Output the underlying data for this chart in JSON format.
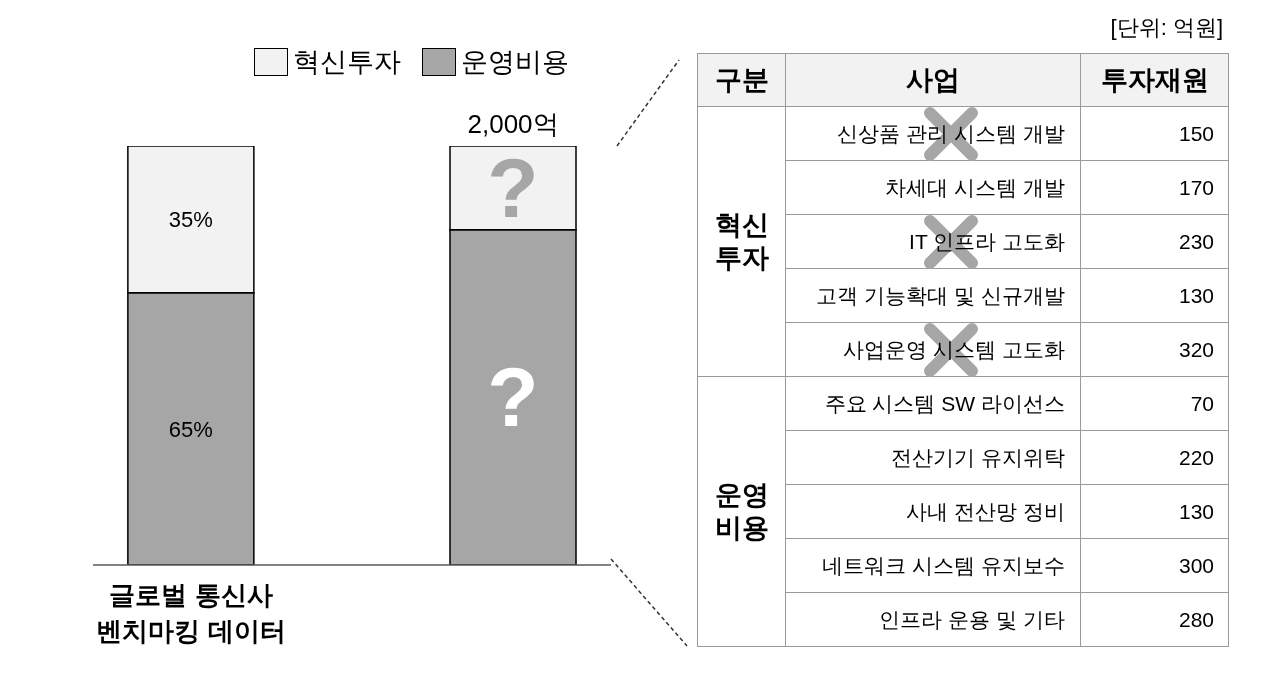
{
  "chart_data": [
    {
      "type": "bar",
      "stacked": true,
      "categories": [
        "글로벌 통신사 벤치마킹 데이터",
        null
      ],
      "series": [
        {
          "name": "운영비용",
          "color": "#a6a6a6",
          "values": [
            65,
            80
          ],
          "value_labels": [
            "65%",
            "?"
          ]
        },
        {
          "name": "혁신투자",
          "color": "#f2f2f2",
          "values": [
            35,
            20
          ],
          "value_labels": [
            "35%",
            "?"
          ]
        }
      ],
      "annotations": [
        "2,000억"
      ],
      "legend": "top"
    },
    {
      "type": "other",
      "annotations": [
        "[단위: 억원]"
      ],
      "legend_title": "구분",
      "xlabel": "사업",
      "ylabel": "투자재원",
      "categories": [
        "신상품 관리 시스템 개발",
        "차세대 시스템 개발",
        "IT 인프라 고도화",
        "고객 기능확대 및 신규개발",
        "사업운영 시스템 고도화",
        "주요 시스템 SW 라이선스",
        "전산기기 유지위탁",
        "사내 전산망 정비",
        "네트워크 시스템 유지보수",
        "인프라 운용 및 기타"
      ],
      "series": [
        {
          "name": "혁신투자",
          "values": [
            150,
            170,
            230,
            130,
            320,
            null,
            null,
            null,
            null,
            null
          ]
        },
        {
          "name": "운영비용",
          "values": [
            null,
            null,
            null,
            null,
            null,
            70,
            220,
            130,
            300,
            280
          ]
        }
      ],
      "data_labels": true
    }
  ]
}
